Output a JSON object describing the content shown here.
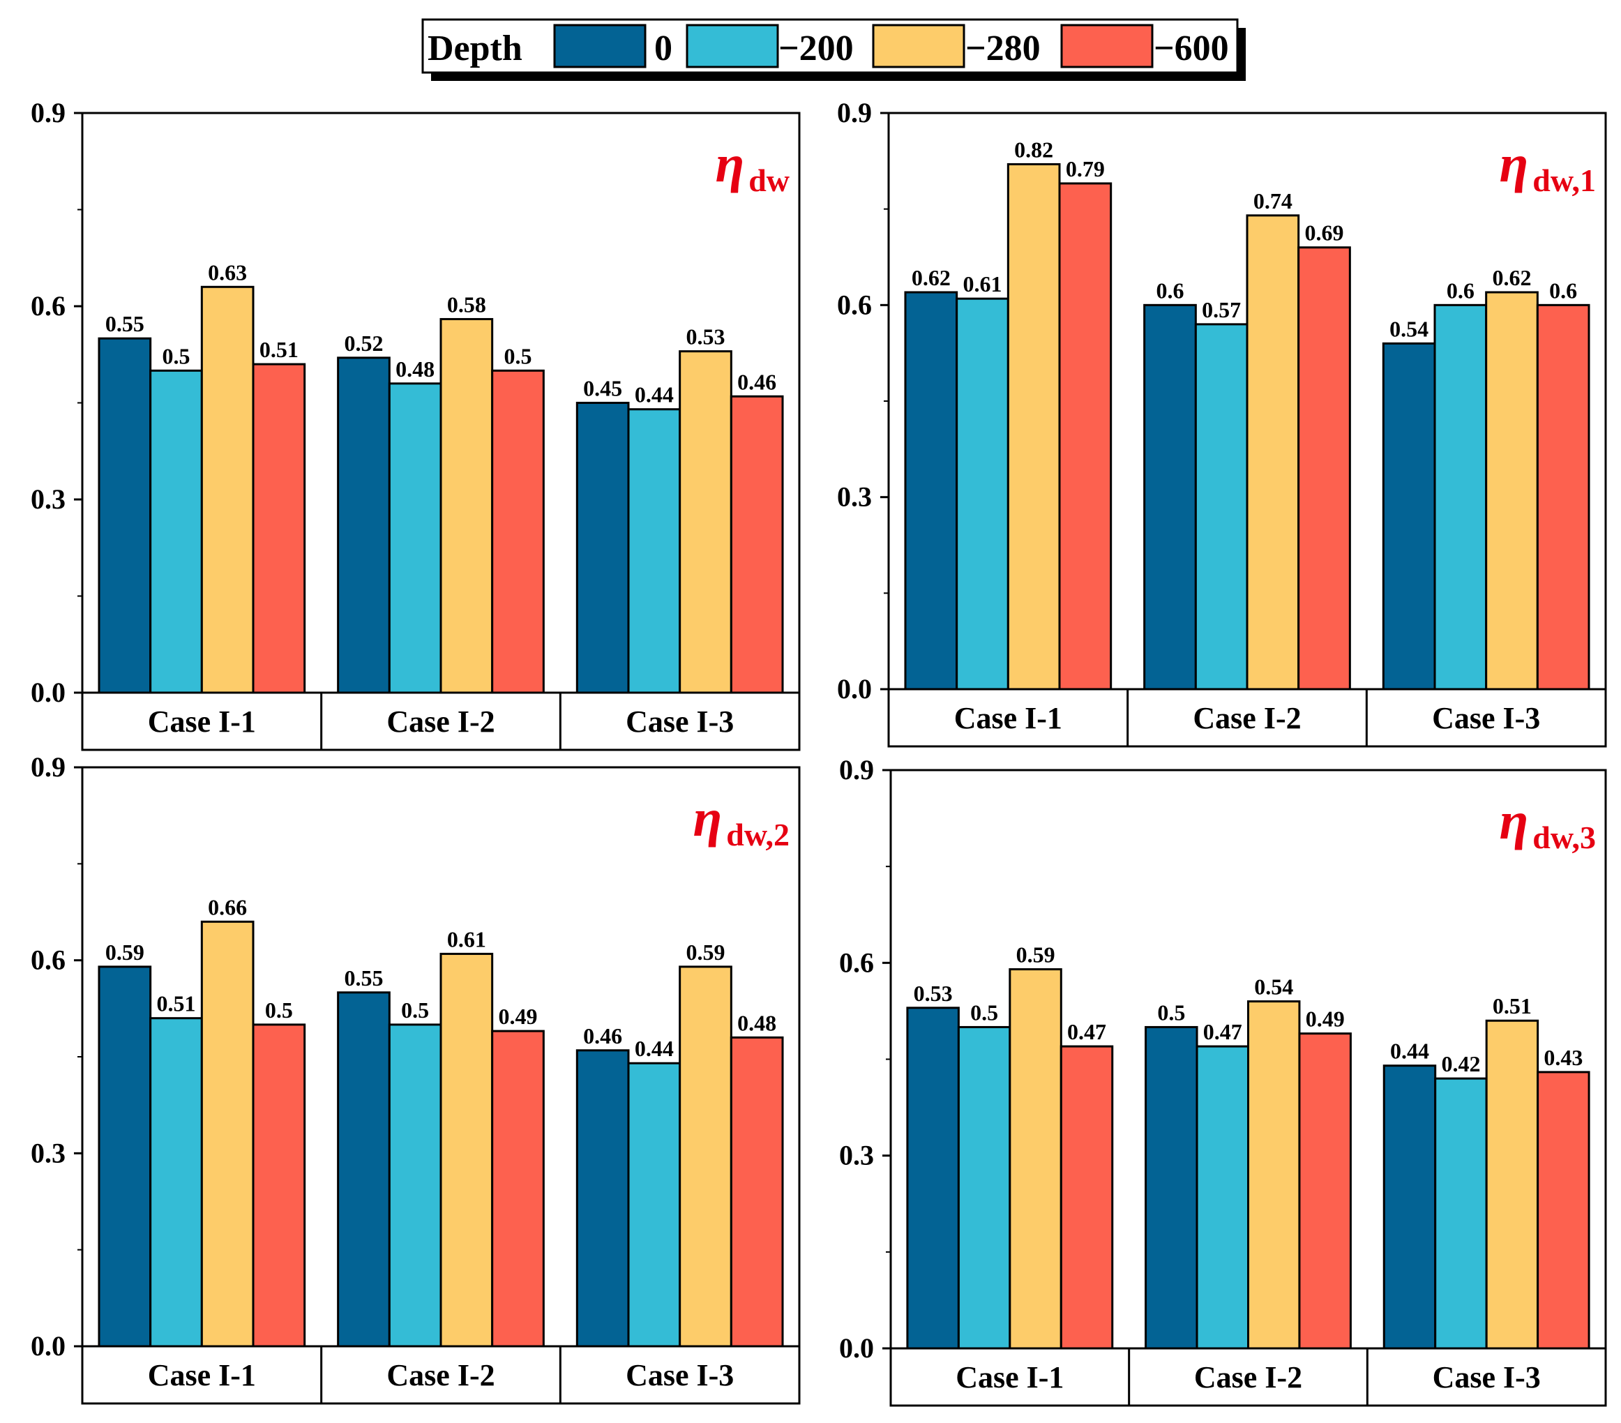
{
  "legend": {
    "title": "Depth",
    "entries": [
      {
        "label": "0",
        "color": "#036394"
      },
      {
        "label": "−200",
        "color": "#34bcd6"
      },
      {
        "label": "−280",
        "color": "#fdcc6a"
      },
      {
        "label": "−600",
        "color": "#fd614f"
      }
    ]
  },
  "chart_data": [
    {
      "type": "bar",
      "title_symbol": "η",
      "title_subscript": "dw",
      "categories": [
        "Case I-1",
        "Case I-2",
        "Case I-3"
      ],
      "ylim": [
        0,
        0.9
      ],
      "yticks": [
        "0.0",
        "0.3",
        "0.6",
        "0.9"
      ],
      "series": [
        {
          "name": "0",
          "values": [
            0.55,
            0.52,
            0.45
          ],
          "labels": [
            "0.55",
            "0.52",
            "0.45"
          ]
        },
        {
          "name": "−200",
          "values": [
            0.5,
            0.48,
            0.44
          ],
          "labels": [
            "0.5",
            "0.48",
            "0.44"
          ]
        },
        {
          "name": "−280",
          "values": [
            0.63,
            0.58,
            0.53
          ],
          "labels": [
            "0.63",
            "0.58",
            "0.53"
          ]
        },
        {
          "name": "−600",
          "values": [
            0.51,
            0.5,
            0.46
          ],
          "labels": [
            "0.51",
            "0.5",
            "0.46"
          ]
        }
      ]
    },
    {
      "type": "bar",
      "title_symbol": "η",
      "title_subscript": "dw,1",
      "categories": [
        "Case I-1",
        "Case I-2",
        "Case I-3"
      ],
      "ylim": [
        0,
        0.9
      ],
      "yticks": [
        "0.0",
        "0.3",
        "0.6",
        "0.9"
      ],
      "series": [
        {
          "name": "0",
          "values": [
            0.62,
            0.6,
            0.54
          ],
          "labels": [
            "0.62",
            "0.6",
            "0.54"
          ]
        },
        {
          "name": "−200",
          "values": [
            0.61,
            0.57,
            0.6
          ],
          "labels": [
            "0.61",
            "0.57",
            "0.6"
          ]
        },
        {
          "name": "−280",
          "values": [
            0.82,
            0.74,
            0.62
          ],
          "labels": [
            "0.82",
            "0.74",
            "0.62"
          ]
        },
        {
          "name": "−600",
          "values": [
            0.79,
            0.69,
            0.6
          ],
          "labels": [
            "0.79",
            "0.69",
            "0.6"
          ]
        }
      ]
    },
    {
      "type": "bar",
      "title_symbol": "η",
      "title_subscript": "dw,2",
      "categories": [
        "Case I-1",
        "Case I-2",
        "Case I-3"
      ],
      "ylim": [
        0,
        0.9
      ],
      "yticks": [
        "0.0",
        "0.3",
        "0.6",
        "0.9"
      ],
      "series": [
        {
          "name": "0",
          "values": [
            0.59,
            0.55,
            0.46
          ],
          "labels": [
            "0.59",
            "0.55",
            "0.46"
          ]
        },
        {
          "name": "−200",
          "values": [
            0.51,
            0.5,
            0.44
          ],
          "labels": [
            "0.51",
            "0.5",
            "0.44"
          ]
        },
        {
          "name": "−280",
          "values": [
            0.66,
            0.61,
            0.59
          ],
          "labels": [
            "0.66",
            "0.61",
            "0.59"
          ]
        },
        {
          "name": "−600",
          "values": [
            0.5,
            0.49,
            0.48
          ],
          "labels": [
            "0.5",
            "0.49",
            "0.48"
          ]
        }
      ]
    },
    {
      "type": "bar",
      "title_symbol": "η",
      "title_subscript": "dw,3",
      "categories": [
        "Case I-1",
        "Case I-2",
        "Case I-3"
      ],
      "ylim": [
        0,
        0.9
      ],
      "yticks": [
        "0.0",
        "0.3",
        "0.6",
        "0.9"
      ],
      "series": [
        {
          "name": "0",
          "values": [
            0.53,
            0.5,
            0.44
          ],
          "labels": [
            "0.53",
            "0.5",
            "0.44"
          ]
        },
        {
          "name": "−200",
          "values": [
            0.5,
            0.47,
            0.42
          ],
          "labels": [
            "0.5",
            "0.47",
            "0.42"
          ]
        },
        {
          "name": "−280",
          "values": [
            0.59,
            0.54,
            0.51
          ],
          "labels": [
            "0.59",
            "0.54",
            "0.51"
          ]
        },
        {
          "name": "−600",
          "values": [
            0.47,
            0.49,
            0.43
          ],
          "labels": [
            "0.47",
            "0.49",
            "0.43"
          ]
        }
      ]
    }
  ]
}
